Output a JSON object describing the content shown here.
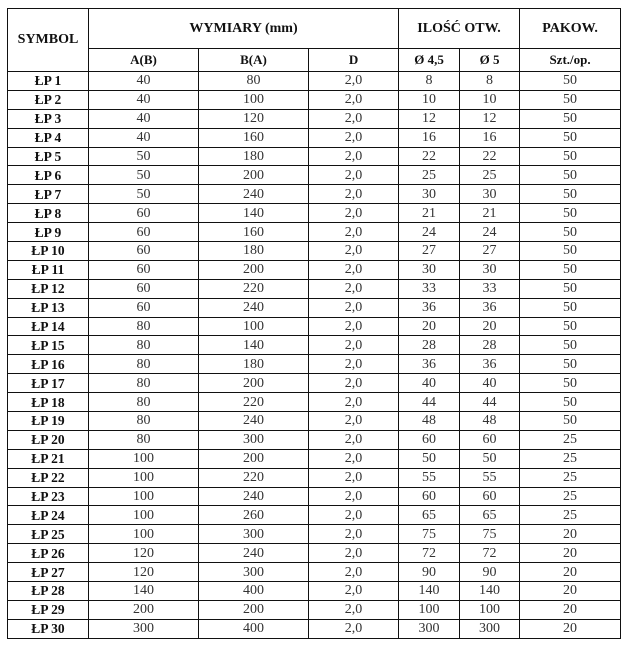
{
  "headers": {
    "symbol": "SYMBOL",
    "dimensions": "WYMIARY (mm)",
    "holes": "ILOŚĆ OTW.",
    "packing": "PAKOW.",
    "a": "A(B)",
    "b": "B(A)",
    "d": "D",
    "hole45": "Ø 4,5",
    "hole5": "Ø 5",
    "pcs": "Szt./op."
  },
  "rows": [
    [
      "ŁP 1",
      "40",
      "80",
      "2,0",
      "8",
      "8",
      "50"
    ],
    [
      "ŁP 2",
      "40",
      "100",
      "2,0",
      "10",
      "10",
      "50"
    ],
    [
      "ŁP 3",
      "40",
      "120",
      "2,0",
      "12",
      "12",
      "50"
    ],
    [
      "ŁP 4",
      "40",
      "160",
      "2,0",
      "16",
      "16",
      "50"
    ],
    [
      "ŁP 5",
      "50",
      "180",
      "2,0",
      "22",
      "22",
      "50"
    ],
    [
      "ŁP 6",
      "50",
      "200",
      "2,0",
      "25",
      "25",
      "50"
    ],
    [
      "ŁP 7",
      "50",
      "240",
      "2,0",
      "30",
      "30",
      "50"
    ],
    [
      "ŁP 8",
      "60",
      "140",
      "2,0",
      "21",
      "21",
      "50"
    ],
    [
      "ŁP 9",
      "60",
      "160",
      "2,0",
      "24",
      "24",
      "50"
    ],
    [
      "ŁP 10",
      "60",
      "180",
      "2,0",
      "27",
      "27",
      "50"
    ],
    [
      "ŁP 11",
      "60",
      "200",
      "2,0",
      "30",
      "30",
      "50"
    ],
    [
      "ŁP 12",
      "60",
      "220",
      "2,0",
      "33",
      "33",
      "50"
    ],
    [
      "ŁP 13",
      "60",
      "240",
      "2,0",
      "36",
      "36",
      "50"
    ],
    [
      "ŁP 14",
      "80",
      "100",
      "2,0",
      "20",
      "20",
      "50"
    ],
    [
      "ŁP 15",
      "80",
      "140",
      "2,0",
      "28",
      "28",
      "50"
    ],
    [
      "ŁP 16",
      "80",
      "180",
      "2,0",
      "36",
      "36",
      "50"
    ],
    [
      "ŁP 17",
      "80",
      "200",
      "2,0",
      "40",
      "40",
      "50"
    ],
    [
      "ŁP 18",
      "80",
      "220",
      "2,0",
      "44",
      "44",
      "50"
    ],
    [
      "ŁP 19",
      "80",
      "240",
      "2,0",
      "48",
      "48",
      "50"
    ],
    [
      "ŁP 20",
      "80",
      "300",
      "2,0",
      "60",
      "60",
      "25"
    ],
    [
      "ŁP 21",
      "100",
      "200",
      "2,0",
      "50",
      "50",
      "25"
    ],
    [
      "ŁP 22",
      "100",
      "220",
      "2,0",
      "55",
      "55",
      "25"
    ],
    [
      "ŁP 23",
      "100",
      "240",
      "2,0",
      "60",
      "60",
      "25"
    ],
    [
      "ŁP 24",
      "100",
      "260",
      "2,0",
      "65",
      "65",
      "25"
    ],
    [
      "ŁP 25",
      "100",
      "300",
      "2,0",
      "75",
      "75",
      "20"
    ],
    [
      "ŁP 26",
      "120",
      "240",
      "2,0",
      "72",
      "72",
      "20"
    ],
    [
      "ŁP 27",
      "120",
      "300",
      "2,0",
      "90",
      "90",
      "20"
    ],
    [
      "ŁP 28",
      "140",
      "400",
      "2,0",
      "140",
      "140",
      "20"
    ],
    [
      "ŁP 29",
      "200",
      "200",
      "2,0",
      "100",
      "100",
      "20"
    ],
    [
      "ŁP 30",
      "300",
      "400",
      "2,0",
      "300",
      "300",
      "20"
    ]
  ]
}
